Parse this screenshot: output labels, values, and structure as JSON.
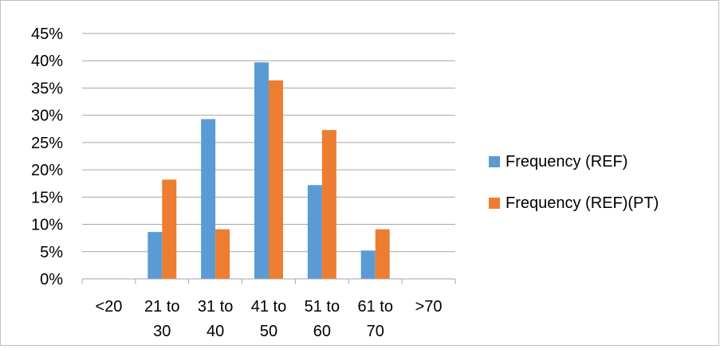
{
  "chart_data": {
    "type": "bar",
    "title": "",
    "xlabel": "",
    "ylabel": "",
    "categories": [
      "<20",
      "21 to 30",
      "31 to 40",
      "41 to 50",
      "51 to 60",
      "61 to 70",
      ">70"
    ],
    "category_lines": [
      [
        "<20"
      ],
      [
        "21 to",
        "30"
      ],
      [
        "31 to",
        "40"
      ],
      [
        "41 to",
        "50"
      ],
      [
        "51 to",
        "60"
      ],
      [
        "61 to",
        "70"
      ],
      [
        ">70"
      ]
    ],
    "series": [
      {
        "name": "Frequency (REF)",
        "color": "#5b9bd5",
        "values": [
          0,
          0.086,
          0.293,
          0.397,
          0.172,
          0.052,
          0
        ]
      },
      {
        "name": "Frequency (REF)(PT)",
        "color": "#ed7d31",
        "values": [
          0,
          0.182,
          0.091,
          0.364,
          0.273,
          0.091,
          0
        ]
      }
    ],
    "ylim": [
      0,
      0.45
    ],
    "yticks": [
      0,
      0.05,
      0.1,
      0.15,
      0.2,
      0.25,
      0.3,
      0.35,
      0.4,
      0.45
    ],
    "ytick_labels": [
      "0%",
      "5%",
      "10%",
      "15%",
      "20%",
      "25%",
      "30%",
      "35%",
      "40%",
      "45%"
    ],
    "grid": true,
    "legend_position": "right"
  }
}
